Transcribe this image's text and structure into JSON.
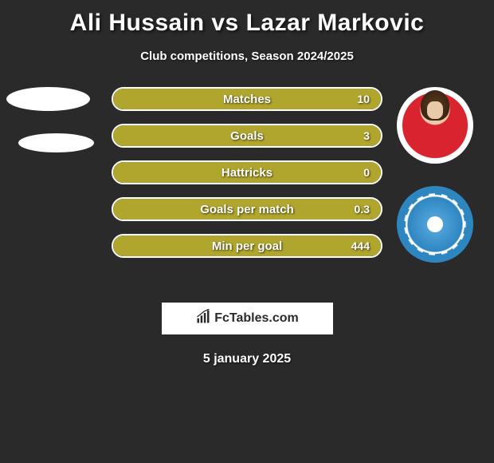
{
  "title": "Ali Hussain vs Lazar Markovic",
  "subtitle": "Club competitions, Season 2024/2025",
  "date": "5 january 2025",
  "logo_text": "FcTables.com",
  "colors": {
    "background": "#2a2a2a",
    "bar_fill": "#b0a62e",
    "bar_border": "#ffffff",
    "text": "#ffffff",
    "player_shirt": "#d9232e",
    "club_primary": "#2e86c1",
    "club_secondary": "#5dade2"
  },
  "stats": [
    {
      "label": "Matches",
      "value": "10",
      "fill_pct": 100
    },
    {
      "label": "Goals",
      "value": "3",
      "fill_pct": 100
    },
    {
      "label": "Hattricks",
      "value": "0",
      "fill_pct": 100
    },
    {
      "label": "Goals per match",
      "value": "0.3",
      "fill_pct": 100
    },
    {
      "label": "Min per goal",
      "value": "444",
      "fill_pct": 100
    }
  ],
  "left_shapes": [
    {
      "type": "ellipse",
      "size": "big"
    },
    {
      "type": "ellipse",
      "size": "small"
    }
  ],
  "right_avatars": [
    {
      "type": "player-photo"
    },
    {
      "type": "club-logo"
    }
  ]
}
